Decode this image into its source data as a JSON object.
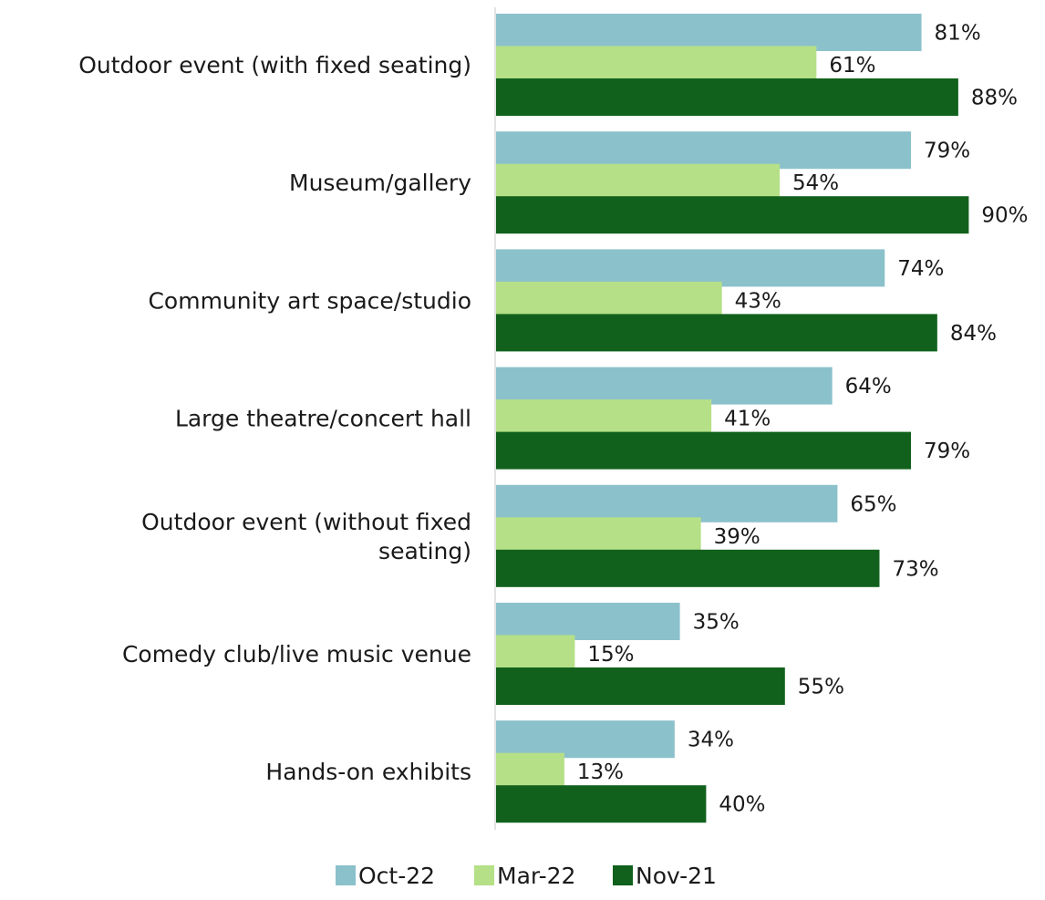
{
  "chart_data": {
    "type": "bar",
    "orientation": "horizontal",
    "categories": [
      "Outdoor event (with fixed seating)",
      "Museum/gallery",
      "Community art space/studio",
      "Large theatre/concert hall",
      "Outdoor event (without fixed seating)",
      "Comedy club/live music venue",
      "Hands-on exhibits"
    ],
    "series": [
      {
        "name": "Oct-22",
        "color": "#8BC1CB",
        "values": [
          81,
          79,
          74,
          64,
          65,
          35,
          34
        ],
        "labels": [
          "81%",
          "79%",
          "74%",
          "64%",
          "65%",
          "35%",
          "34%"
        ]
      },
      {
        "name": "Mar-22",
        "color": "#B5E087",
        "values": [
          61,
          54,
          43,
          41,
          39,
          15,
          13
        ],
        "labels": [
          "61%",
          "54%",
          "43%",
          "41%",
          "39%",
          "15%",
          "13%"
        ]
      },
      {
        "name": "Nov-21",
        "color": "#11611C",
        "values": [
          88,
          90,
          84,
          79,
          73,
          55,
          40
        ],
        "labels": [
          "88%",
          "90%",
          "84%",
          "79%",
          "73%",
          "55%",
          "40%"
        ]
      }
    ],
    "unit": "%",
    "xlim": [
      0,
      100
    ],
    "grid": false,
    "legend": "bottom-center"
  }
}
